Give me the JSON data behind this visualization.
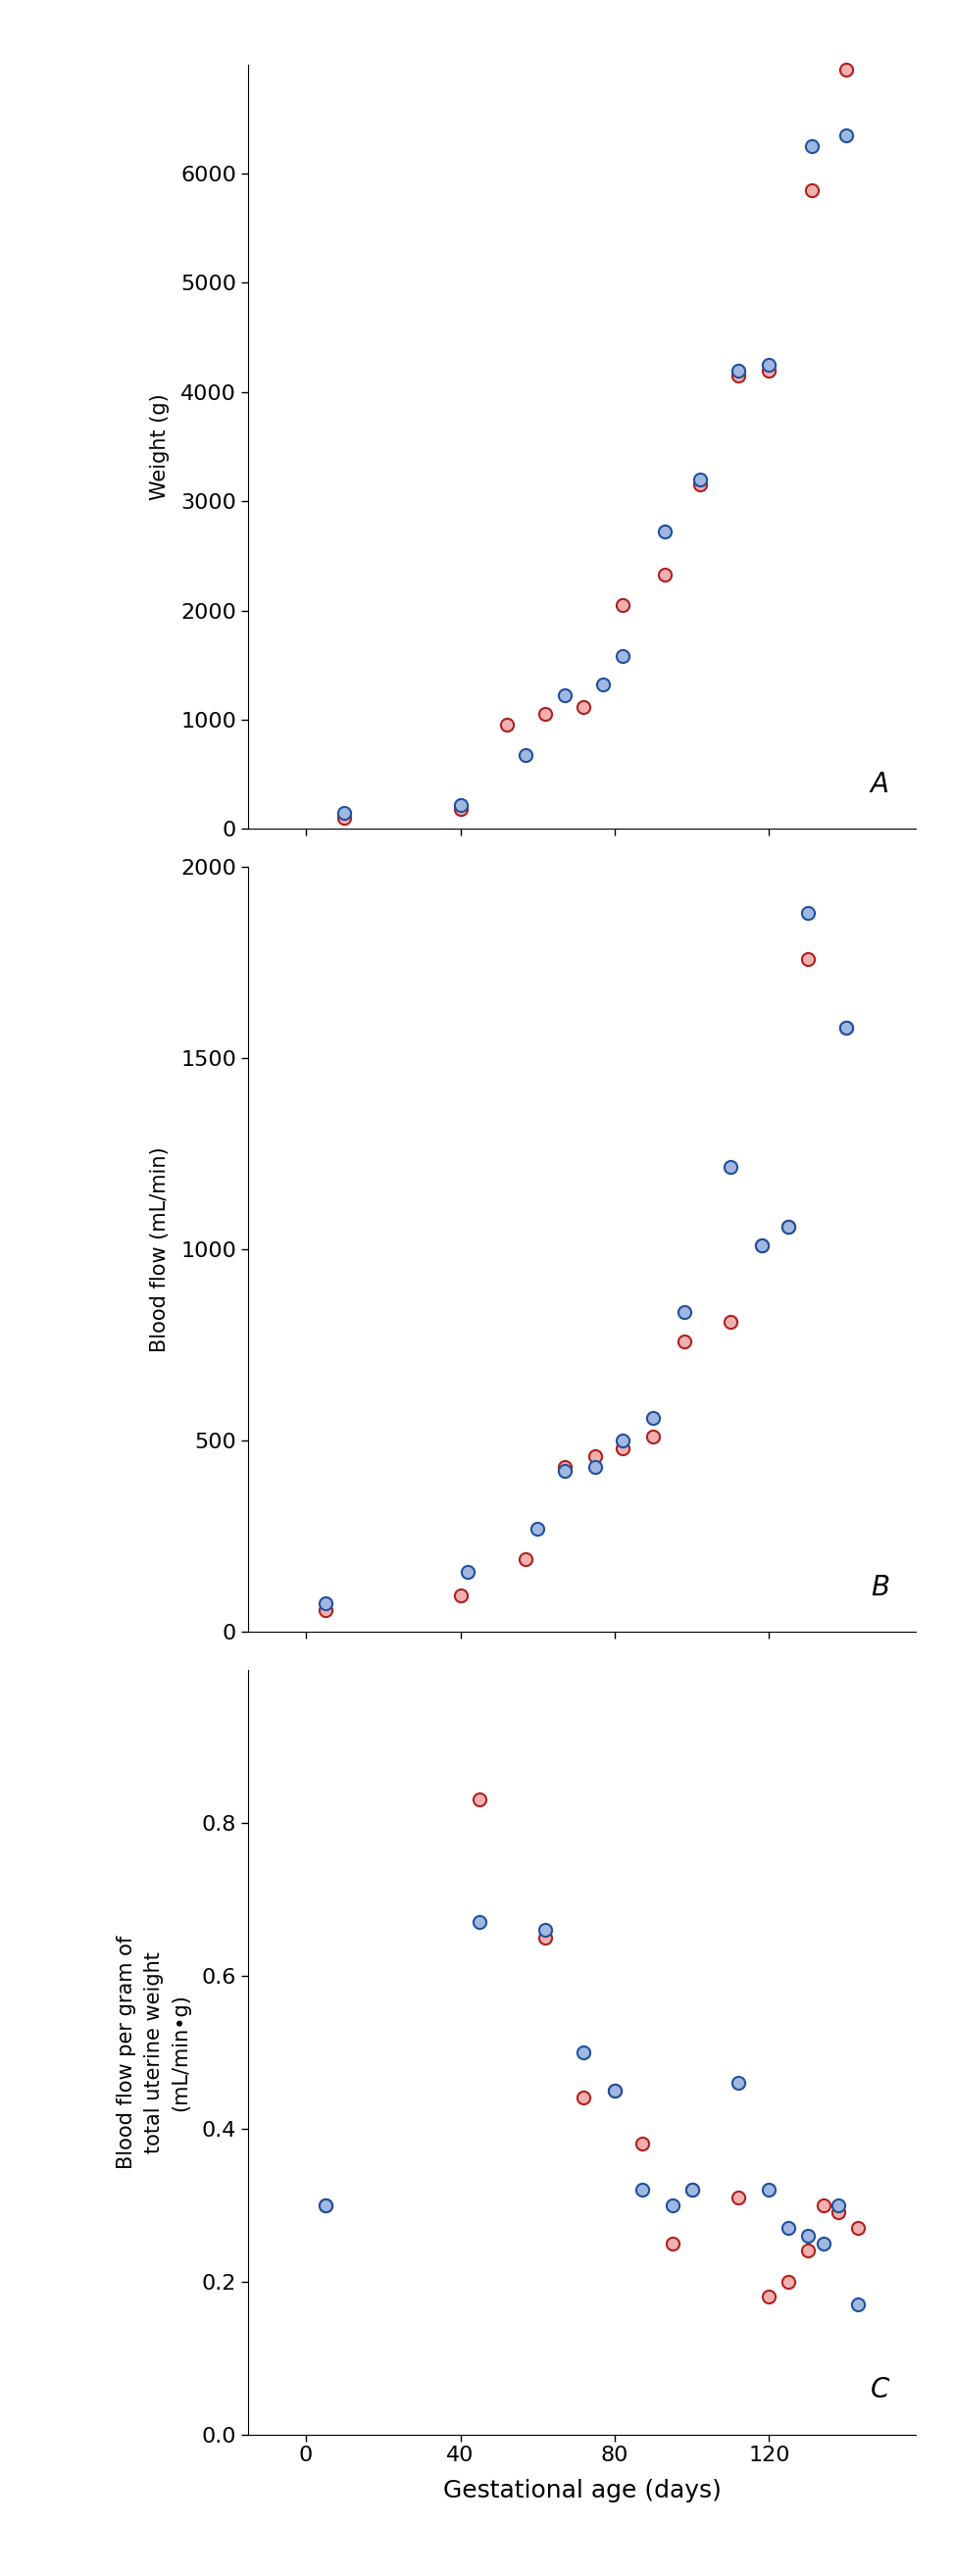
{
  "panel_A": {
    "label": "A",
    "ylabel": "Weight (g)",
    "ylim": [
      0,
      7000
    ],
    "yticks": [
      0,
      1000,
      2000,
      3000,
      4000,
      5000,
      6000
    ],
    "singleton_x": [
      10,
      40,
      52,
      62,
      72,
      82,
      93,
      102,
      112,
      120,
      131,
      140
    ],
    "singleton_y": [
      100,
      180,
      950,
      1050,
      1120,
      2050,
      2330,
      3150,
      4150,
      4200,
      5850,
      6950
    ],
    "twin_x": [
      10,
      40,
      57,
      67,
      77,
      82,
      93,
      102,
      112,
      120,
      131,
      140
    ],
    "twin_y": [
      150,
      220,
      680,
      1220,
      1320,
      1580,
      2720,
      3200,
      4200,
      4250,
      6250,
      6350
    ]
  },
  "panel_B": {
    "label": "B",
    "ylabel": "Blood flow (mL/min)",
    "ylim": [
      0,
      2000
    ],
    "yticks": [
      0,
      500,
      1000,
      1500,
      2000
    ],
    "singleton_x": [
      5,
      40,
      57,
      67,
      75,
      82,
      90,
      98,
      110,
      118,
      125,
      130,
      140
    ],
    "singleton_y": [
      55,
      95,
      190,
      430,
      460,
      480,
      510,
      760,
      810,
      1010,
      1060,
      1760,
      1580
    ],
    "twin_x": [
      5,
      42,
      60,
      67,
      75,
      82,
      90,
      98,
      110,
      118,
      125,
      130,
      140
    ],
    "twin_y": [
      75,
      155,
      270,
      420,
      430,
      500,
      560,
      835,
      1215,
      1010,
      1060,
      1880,
      1580
    ]
  },
  "panel_C": {
    "label": "C",
    "ylabel": "Blood flow per gram of\ntotal uterine weight\n(mL/min•g)",
    "ylim": [
      0,
      1.0
    ],
    "yticks": [
      0,
      0.2,
      0.4,
      0.6,
      0.8
    ],
    "singleton_x": [
      5,
      45,
      62,
      72,
      80,
      87,
      95,
      100,
      112,
      120,
      125,
      130,
      134,
      138,
      143
    ],
    "singleton_y": [
      0.3,
      0.83,
      0.65,
      0.44,
      0.45,
      0.38,
      0.25,
      0.32,
      0.31,
      0.18,
      0.2,
      0.24,
      0.3,
      0.29,
      0.27
    ],
    "twin_x": [
      5,
      45,
      62,
      72,
      80,
      87,
      95,
      100,
      112,
      120,
      125,
      130,
      134,
      138,
      143
    ],
    "twin_y": [
      0.3,
      0.67,
      0.66,
      0.5,
      0.45,
      0.32,
      0.3,
      0.32,
      0.46,
      0.32,
      0.27,
      0.26,
      0.25,
      0.3,
      0.17
    ]
  },
  "xlim": [
    -15,
    158
  ],
  "xticks": [
    0,
    40,
    80,
    120
  ],
  "xlabel": "Gestational age (days)",
  "singleton_edge": "#b02020",
  "singleton_face": "#f0b0b0",
  "twin_edge": "#2050a0",
  "twin_face": "#a0b8e0",
  "marker_size": 90,
  "marker_lw": 1.5
}
